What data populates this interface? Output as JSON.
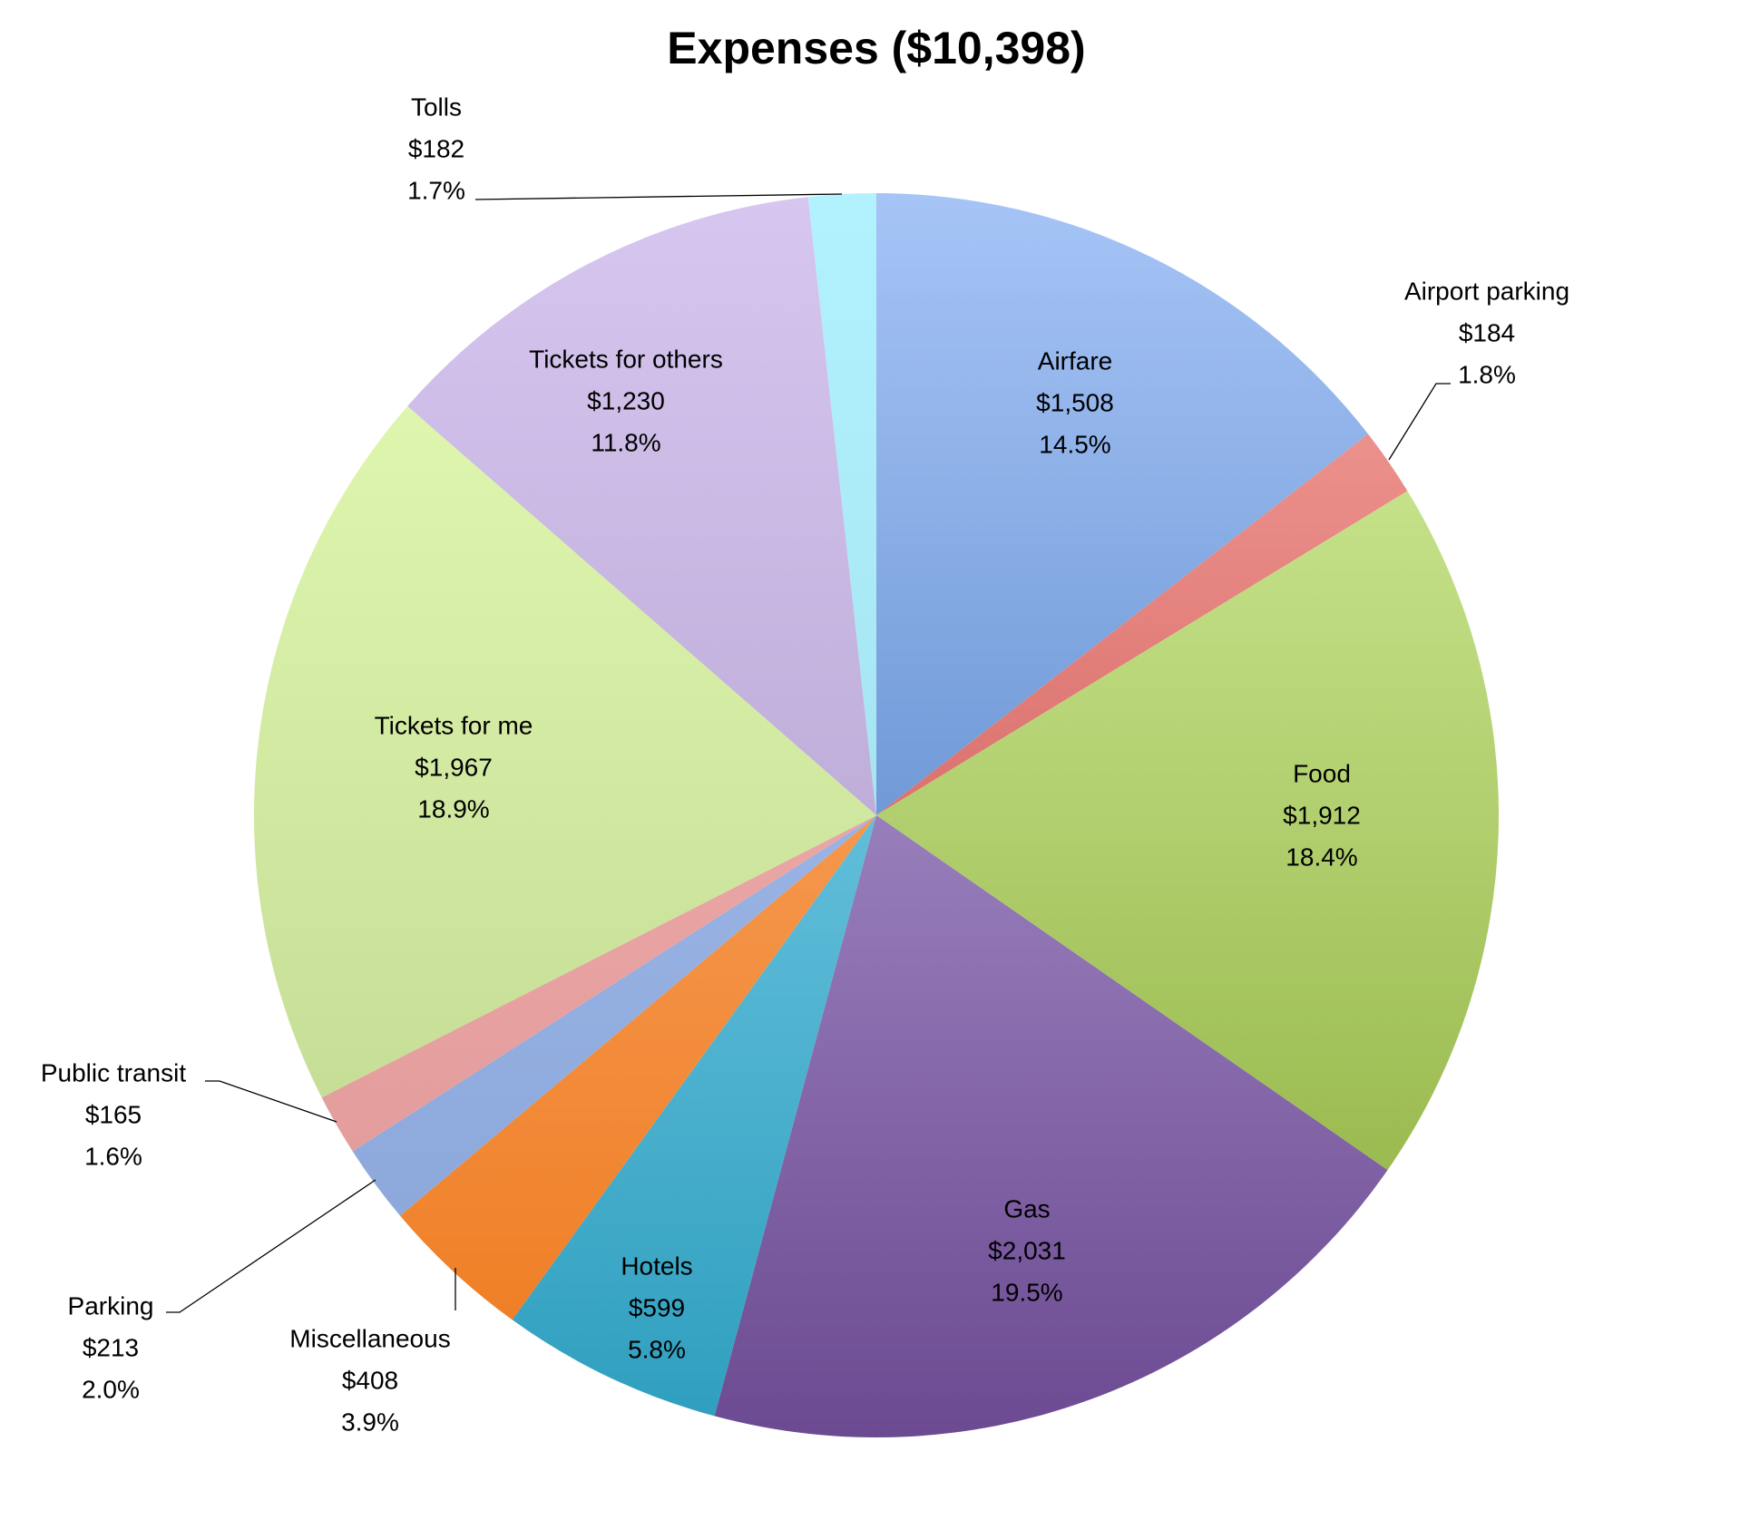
{
  "chart_data": {
    "type": "pie",
    "title": "Expenses ($10,398)",
    "start_angle_deg": 0,
    "direction": "clockwise",
    "slices": [
      {
        "label": "Airfare",
        "value": 1508,
        "value_label": "$1,508",
        "percent_label": "14.5%",
        "color_light": "#a6c4f6",
        "color_dark": "#3a6fb8",
        "label_placement": "inside"
      },
      {
        "label": "Airport parking",
        "value": 184,
        "value_label": "$184",
        "percent_label": "1.8%",
        "color_light": "#f6a4a0",
        "color_dark": "#c0403c",
        "label_placement": "outside"
      },
      {
        "label": "Food",
        "value": 1912,
        "value_label": "$1,912",
        "percent_label": "18.4%",
        "color_light": "#d8f2a2",
        "color_dark": "#8aac3a",
        "label_placement": "inside"
      },
      {
        "label": "Gas",
        "value": 2031,
        "value_label": "$2,031",
        "percent_label": "19.5%",
        "color_light": "#c4b2e4",
        "color_dark": "#6c4a92",
        "label_placement": "inside"
      },
      {
        "label": "Hotels",
        "value": 599,
        "value_label": "$599",
        "percent_label": "5.8%",
        "color_light": "#94def6",
        "color_dark": "#2e9ebe",
        "label_placement": "inside"
      },
      {
        "label": "Miscellaneous",
        "value": 408,
        "value_label": "$408",
        "percent_label": "3.9%",
        "color_light": "#fab47c",
        "color_dark": "#ef7a1e",
        "label_placement": "outside"
      },
      {
        "label": "Parking",
        "value": 213,
        "value_label": "$213",
        "percent_label": "2.0%",
        "color_light": "#acc4f2",
        "color_dark": "#86a2d6",
        "label_placement": "outside"
      },
      {
        "label": "Public transit",
        "value": 165,
        "value_label": "$165",
        "percent_label": "1.6%",
        "color_light": "#f6b4b4",
        "color_dark": "#de9696",
        "label_placement": "outside"
      },
      {
        "label": "Tickets for me",
        "value": 1967,
        "value_label": "$1,967",
        "percent_label": "18.9%",
        "color_light": "#e6fdb6",
        "color_dark": "#bad28a",
        "label_placement": "inside"
      },
      {
        "label": "Tickets for others",
        "value": 1230,
        "value_label": "$1,230",
        "percent_label": "11.8%",
        "color_light": "#d6c6f0",
        "color_dark": "#a696c2",
        "label_placement": "inside"
      },
      {
        "label": "Tolls",
        "value": 182,
        "value_label": "$182",
        "percent_label": "1.7%",
        "color_light": "#b2f2fe",
        "color_dark": "#9ad6e6",
        "label_placement": "outside"
      }
    ],
    "legend": "none"
  }
}
